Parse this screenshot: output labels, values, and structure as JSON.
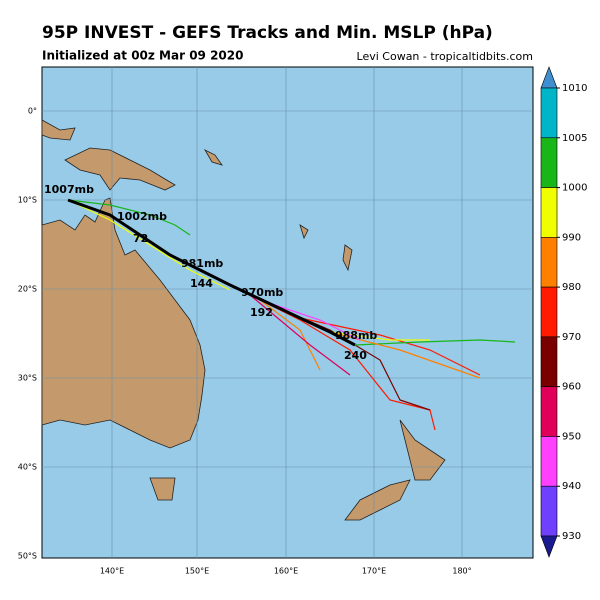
{
  "header": {
    "title": "95P INVEST - GEFS Tracks and Min. MSLP (hPa)",
    "subtitle": "Initialized at 00z Mar 09 2020",
    "credit": "Levi Cowan - tropicaltidbits.com"
  },
  "map": {
    "lat_labels": [
      "0°",
      "10°S",
      "20°S",
      "30°S",
      "40°S",
      "50°S"
    ],
    "lon_labels": [
      "140°E",
      "150°E",
      "160°E",
      "170°E",
      "180°"
    ],
    "annotations": [
      "1007mb",
      "1002mb",
      "72",
      "981mb",
      "144",
      "970mb",
      "192",
      "988mb",
      "240"
    ]
  },
  "colorbar": {
    "ticks": [
      1010,
      1005,
      1000,
      990,
      980,
      970,
      960,
      950,
      940,
      930
    ],
    "colors": [
      "#3f8fd0",
      "#00b5c8",
      "#19b619",
      "#f0ff00",
      "#ff8000",
      "#ff1a00",
      "#7a0000",
      "#e0005a",
      "#ff40ff",
      "#7040ff",
      "#1a1a90"
    ]
  }
}
